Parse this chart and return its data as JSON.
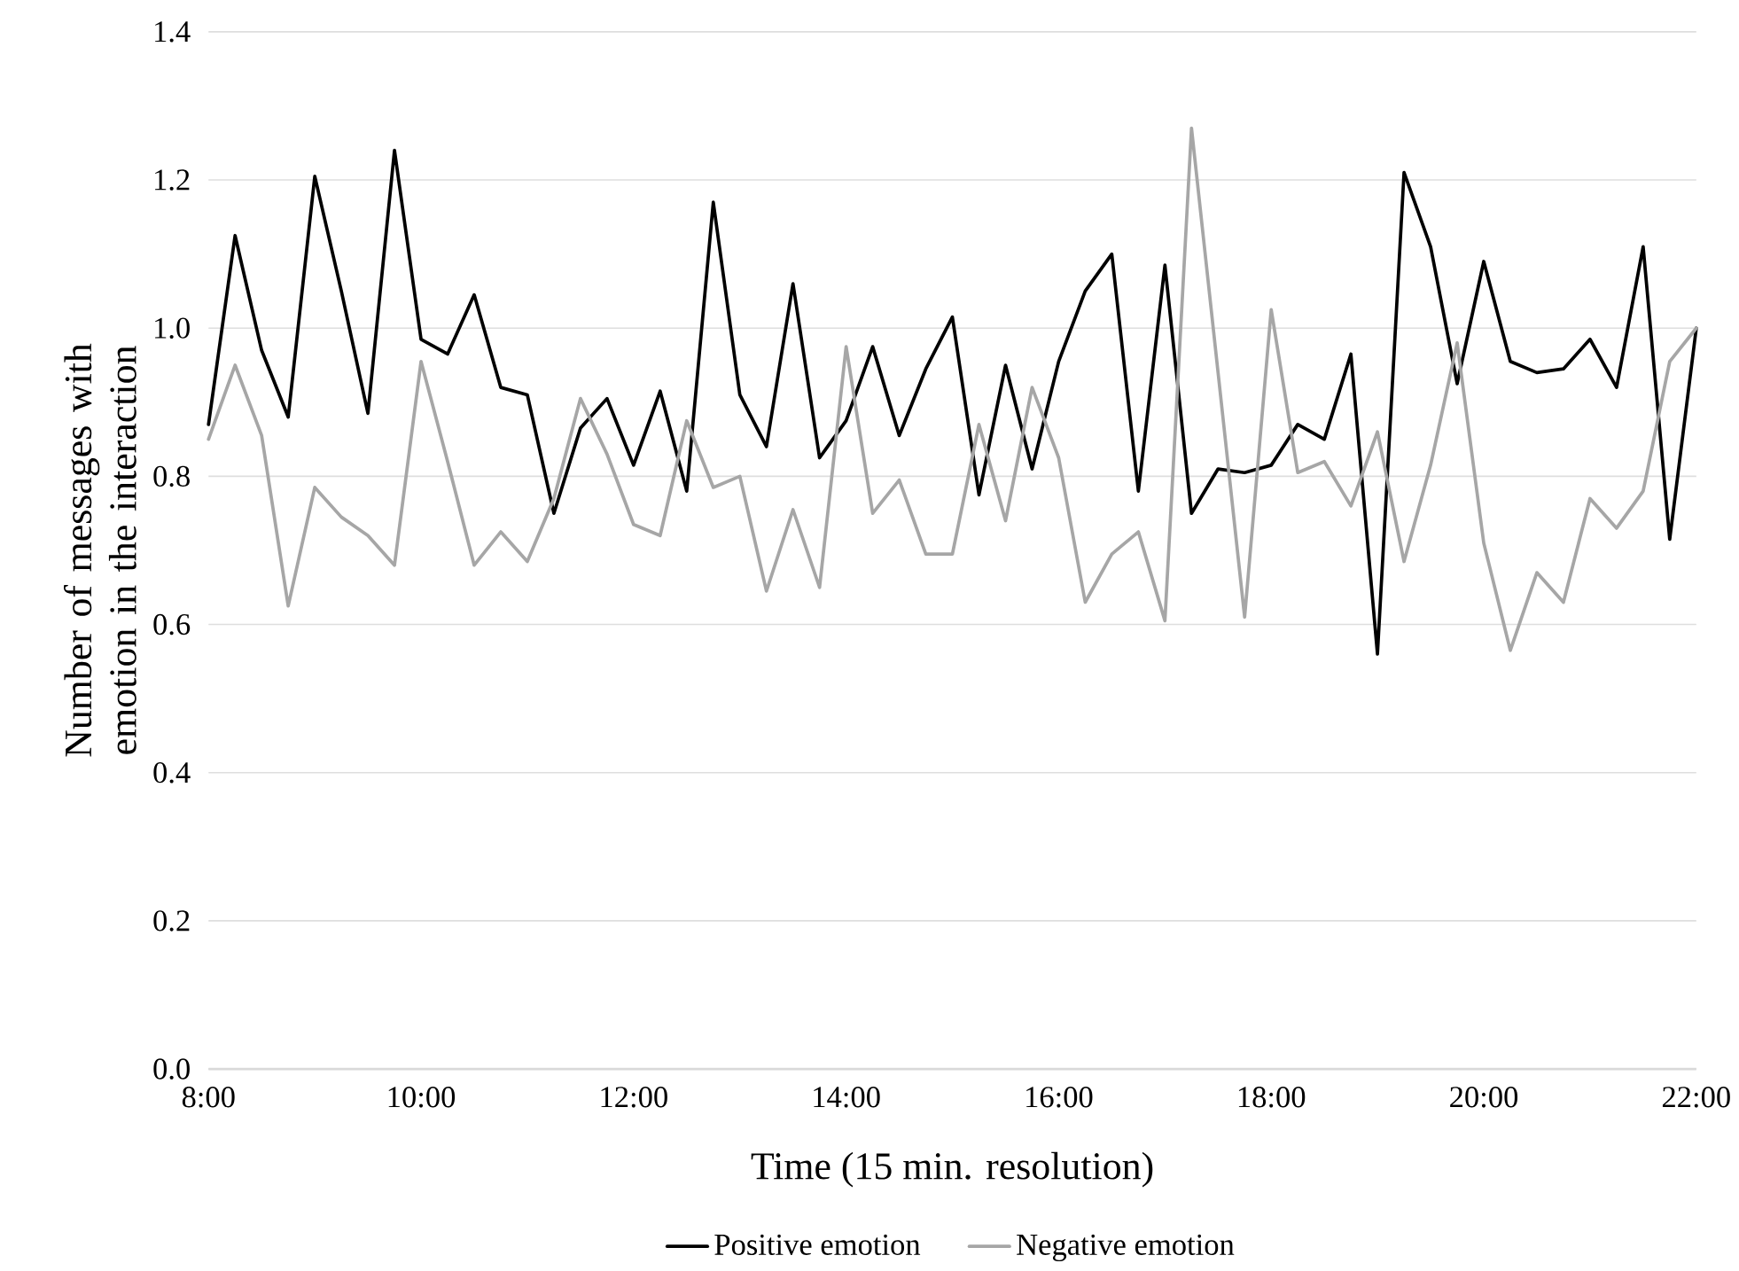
{
  "chart_data": {
    "type": "line",
    "xlabel": "Time (15 min. resolution)",
    "ylabel": "Number of messages with emotion in the interaction",
    "x": [
      8,
      8.25,
      8.5,
      8.75,
      9,
      9.25,
      9.5,
      9.75,
      10,
      10.25,
      10.5,
      10.75,
      11,
      11.25,
      11.5,
      11.75,
      12,
      12.25,
      12.5,
      12.75,
      13,
      13.25,
      13.5,
      13.75,
      14,
      14.25,
      14.5,
      14.75,
      15,
      15.25,
      15.5,
      15.75,
      16,
      16.25,
      16.5,
      16.75,
      17,
      17.25,
      17.5,
      17.75,
      18,
      18.25,
      18.5,
      18.75,
      19,
      19.25,
      19.5,
      19.75,
      20,
      20.25,
      20.5,
      20.75,
      21,
      21.25,
      21.5,
      21.75,
      22
    ],
    "series": [
      {
        "name": "Positive emotion",
        "color": "#000000",
        "values": [
          0.87,
          1.125,
          0.97,
          0.88,
          1.205,
          1.05,
          0.885,
          1.24,
          0.985,
          0.965,
          1.045,
          0.92,
          0.91,
          0.75,
          0.865,
          0.905,
          0.815,
          0.915,
          0.78,
          1.17,
          0.91,
          0.84,
          1.06,
          0.825,
          0.875,
          0.975,
          0.855,
          0.945,
          1.015,
          0.775,
          0.95,
          0.81,
          0.955,
          1.05,
          1.1,
          0.78,
          1.085,
          0.75,
          0.81,
          0.805,
          0.815,
          0.87,
          0.85,
          0.965,
          0.56,
          1.21,
          1.11,
          0.925,
          1.09,
          0.955,
          0.94,
          0.945,
          0.985,
          0.92,
          1.11,
          0.715,
          1.0
        ]
      },
      {
        "name": "Negative emotion",
        "color": "#a6a6a6",
        "values": [
          0.85,
          0.95,
          0.855,
          0.625,
          0.785,
          0.745,
          0.72,
          0.68,
          0.955,
          0.82,
          0.68,
          0.725,
          0.685,
          0.77,
          0.905,
          0.83,
          0.735,
          0.72,
          0.875,
          0.785,
          0.8,
          0.645,
          0.755,
          0.65,
          0.975,
          0.75,
          0.795,
          0.695,
          0.695,
          0.87,
          0.74,
          0.92,
          0.825,
          0.63,
          0.695,
          0.725,
          0.605,
          1.27,
          0.94,
          0.61,
          1.025,
          0.805,
          0.82,
          0.76,
          0.86,
          0.685,
          0.815,
          0.98,
          0.71,
          0.565,
          0.67,
          0.63,
          0.77,
          0.73,
          0.78,
          0.955,
          1.0
        ]
      }
    ],
    "xlim": [
      8,
      22
    ],
    "ylim": [
      0,
      1.4
    ],
    "xticks": [
      {
        "value": 8,
        "label": "8:00"
      },
      {
        "value": 10,
        "label": "10:00"
      },
      {
        "value": 12,
        "label": "12:00"
      },
      {
        "value": 14,
        "label": "14:00"
      },
      {
        "value": 16,
        "label": "16:00"
      },
      {
        "value": 18,
        "label": "18:00"
      },
      {
        "value": 20,
        "label": "20:00"
      },
      {
        "value": 22,
        "label": "22:00"
      }
    ],
    "yticks": [
      {
        "value": 0,
        "label": "0.0"
      },
      {
        "value": 0.2,
        "label": "0.2"
      },
      {
        "value": 0.4,
        "label": "0.4"
      },
      {
        "value": 0.6,
        "label": "0.6"
      },
      {
        "value": 0.8,
        "label": "0.8"
      },
      {
        "value": 1.0,
        "label": "1.0"
      },
      {
        "value": 1.2,
        "label": "1.2"
      },
      {
        "value": 1.4,
        "label": "1.4"
      }
    ],
    "grid": "y",
    "legend": "bottom",
    "marker": "none",
    "line_style": "solid"
  }
}
